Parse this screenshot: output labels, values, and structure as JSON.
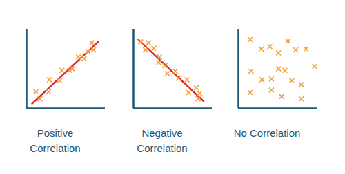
{
  "chart_data": [
    {
      "type": "scatter",
      "title": "Positive Correlation",
      "color": "#f3a03c",
      "marker": "x",
      "tick_labels": false,
      "xlim": [
        0,
        10
      ],
      "ylim": [
        0,
        10
      ],
      "x": [
        1.2,
        1.7,
        2.8,
        2.9,
        4.2,
        4.5,
        5.5,
        5.8,
        6.6,
        7.3,
        7.8,
        8.3,
        8.5
      ],
      "values": [
        2.1,
        1.2,
        2.1,
        3.6,
        3.5,
        4.8,
        4.8,
        5.0,
        6.5,
        6.3,
        7.2,
        8.3,
        7.4
      ],
      "trend": {
        "x": [
          0.7,
          9.1
        ],
        "values": [
          0.6,
          8.4
        ],
        "color": "#e3262b"
      }
    },
    {
      "type": "scatter",
      "title": "Negative Correlation",
      "color": "#f3a03c",
      "marker": "x",
      "tick_labels": false,
      "xlim": [
        0,
        10
      ],
      "ylim": [
        0,
        10
      ],
      "x": [
        0.9,
        1.5,
        1.9,
        2.6,
        3.3,
        3.2,
        4.0,
        4.3,
        5.3,
        5.7,
        6.8,
        7.0,
        8.0,
        8.4,
        8.2
      ],
      "values": [
        8.4,
        7.4,
        8.3,
        7.6,
        6.5,
        5.8,
        5.4,
        4.4,
        4.7,
        3.8,
        3.6,
        2.0,
        2.6,
        1.9,
        1.2
      ],
      "trend": {
        "x": [
          0.6,
          8.9
        ],
        "values": [
          8.7,
          0.9
        ],
        "color": "#e3262b"
      }
    },
    {
      "type": "scatter",
      "title": "No Correlation",
      "color": "#f3a03c",
      "marker": "x",
      "tick_labels": false,
      "xlim": [
        0,
        10
      ],
      "ylim": [
        0,
        10
      ],
      "x": [
        1.5,
        2.9,
        4.0,
        5.1,
        6.3,
        7.3,
        8.6,
        9.7,
        5.1,
        4.2,
        3.0,
        1.6,
        1.5,
        4.2,
        5.5,
        6.8,
        8.0,
        8.0,
        5.9
      ],
      "values": [
        8.7,
        7.5,
        7.8,
        7.0,
        8.5,
        7.4,
        7.5,
        5.3,
        5.0,
        3.7,
        3.6,
        4.7,
        2.0,
        2.3,
        1.5,
        3.5,
        3.0,
        1.2,
        4.8
      ]
    }
  ]
}
